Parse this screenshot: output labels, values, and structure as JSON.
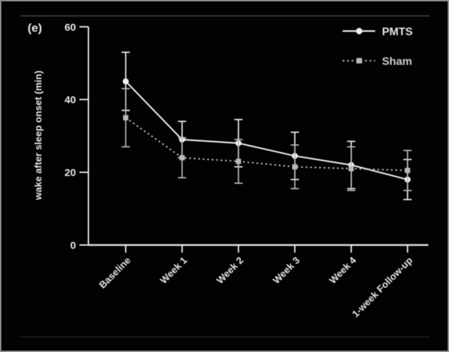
{
  "panel_label": "(e)",
  "figure": {
    "background": "#020202",
    "frame_color": "#8a8a8a",
    "separator_top_color": "#4b4b4b",
    "separator_bottom_color": "#2c2c2c",
    "axis_color": "#e8e8e8"
  },
  "chart_data": {
    "type": "line",
    "title": "",
    "xlabel": "",
    "ylabel": "wake after sleep onset (min)",
    "categories": [
      "Baseline",
      "Week 1",
      "Week 2",
      "Week 3",
      "Week 4",
      "1-week Follow-up"
    ],
    "ylim": [
      0,
      60
    ],
    "yticks": [
      0,
      20,
      40,
      60
    ],
    "grid": false,
    "legend_position": "top-right",
    "error_bars": true,
    "series": [
      {
        "name": "PMTS",
        "line_style": "solid",
        "marker": "circle",
        "color": "#f0f0f0",
        "values": [
          45,
          29,
          28,
          24.5,
          22,
          18
        ],
        "error": [
          8,
          5,
          6.5,
          6.5,
          6.5,
          5.5
        ]
      },
      {
        "name": "Sham",
        "line_style": "dashed",
        "marker": "square",
        "color": "#b9b9b9",
        "values": [
          35,
          24,
          23,
          21.5,
          21,
          20.5
        ],
        "error": [
          8,
          5.5,
          6,
          6,
          6,
          5.5
        ]
      }
    ]
  }
}
